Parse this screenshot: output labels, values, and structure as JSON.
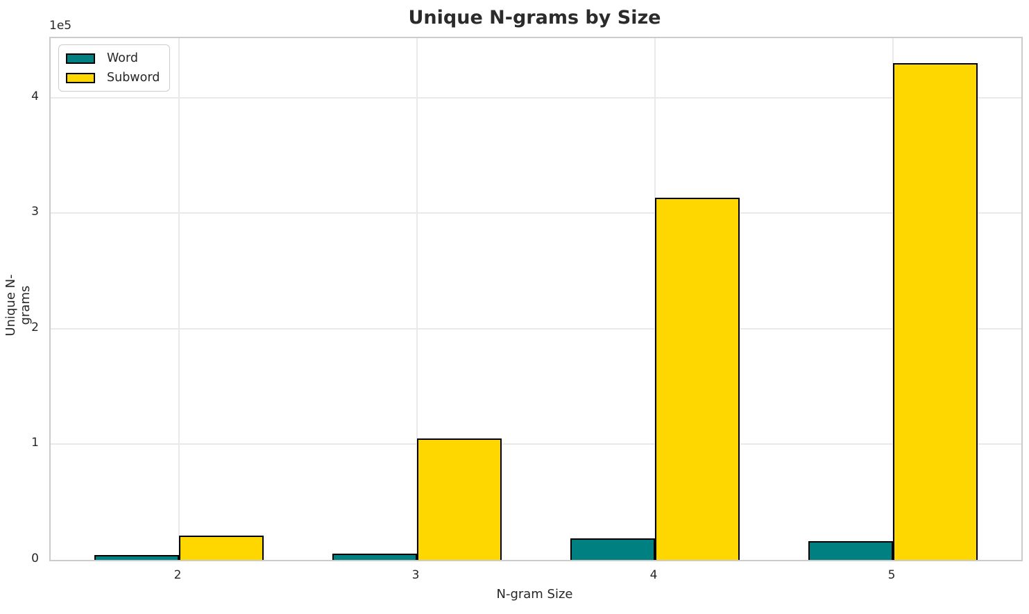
{
  "chart_data": {
    "type": "bar",
    "title": "Unique N-grams by Size",
    "xlabel": "N-gram Size",
    "ylabel": "Unique N-grams",
    "categories": [
      "2",
      "3",
      "4",
      "5"
    ],
    "series": [
      {
        "name": "Word",
        "color": "#008080",
        "values": [
          4300,
          5600,
          18600,
          16200
        ]
      },
      {
        "name": "Subword",
        "color": "#FFD700",
        "values": [
          21000,
          105000,
          313500,
          430000
        ]
      }
    ],
    "bar_edge_color": "#000000",
    "ylim": [
      0,
      451500
    ],
    "yticks": {
      "values": [
        0,
        100000,
        200000,
        300000,
        400000
      ],
      "labels": [
        "0",
        "1",
        "2",
        "3",
        "4"
      ],
      "offset_label": "1e5"
    },
    "grid": "on",
    "grid_color": "#e9e9e9",
    "spine_color": "#cccccc",
    "background_color": "#ffffff",
    "legend_position": "upper left"
  }
}
